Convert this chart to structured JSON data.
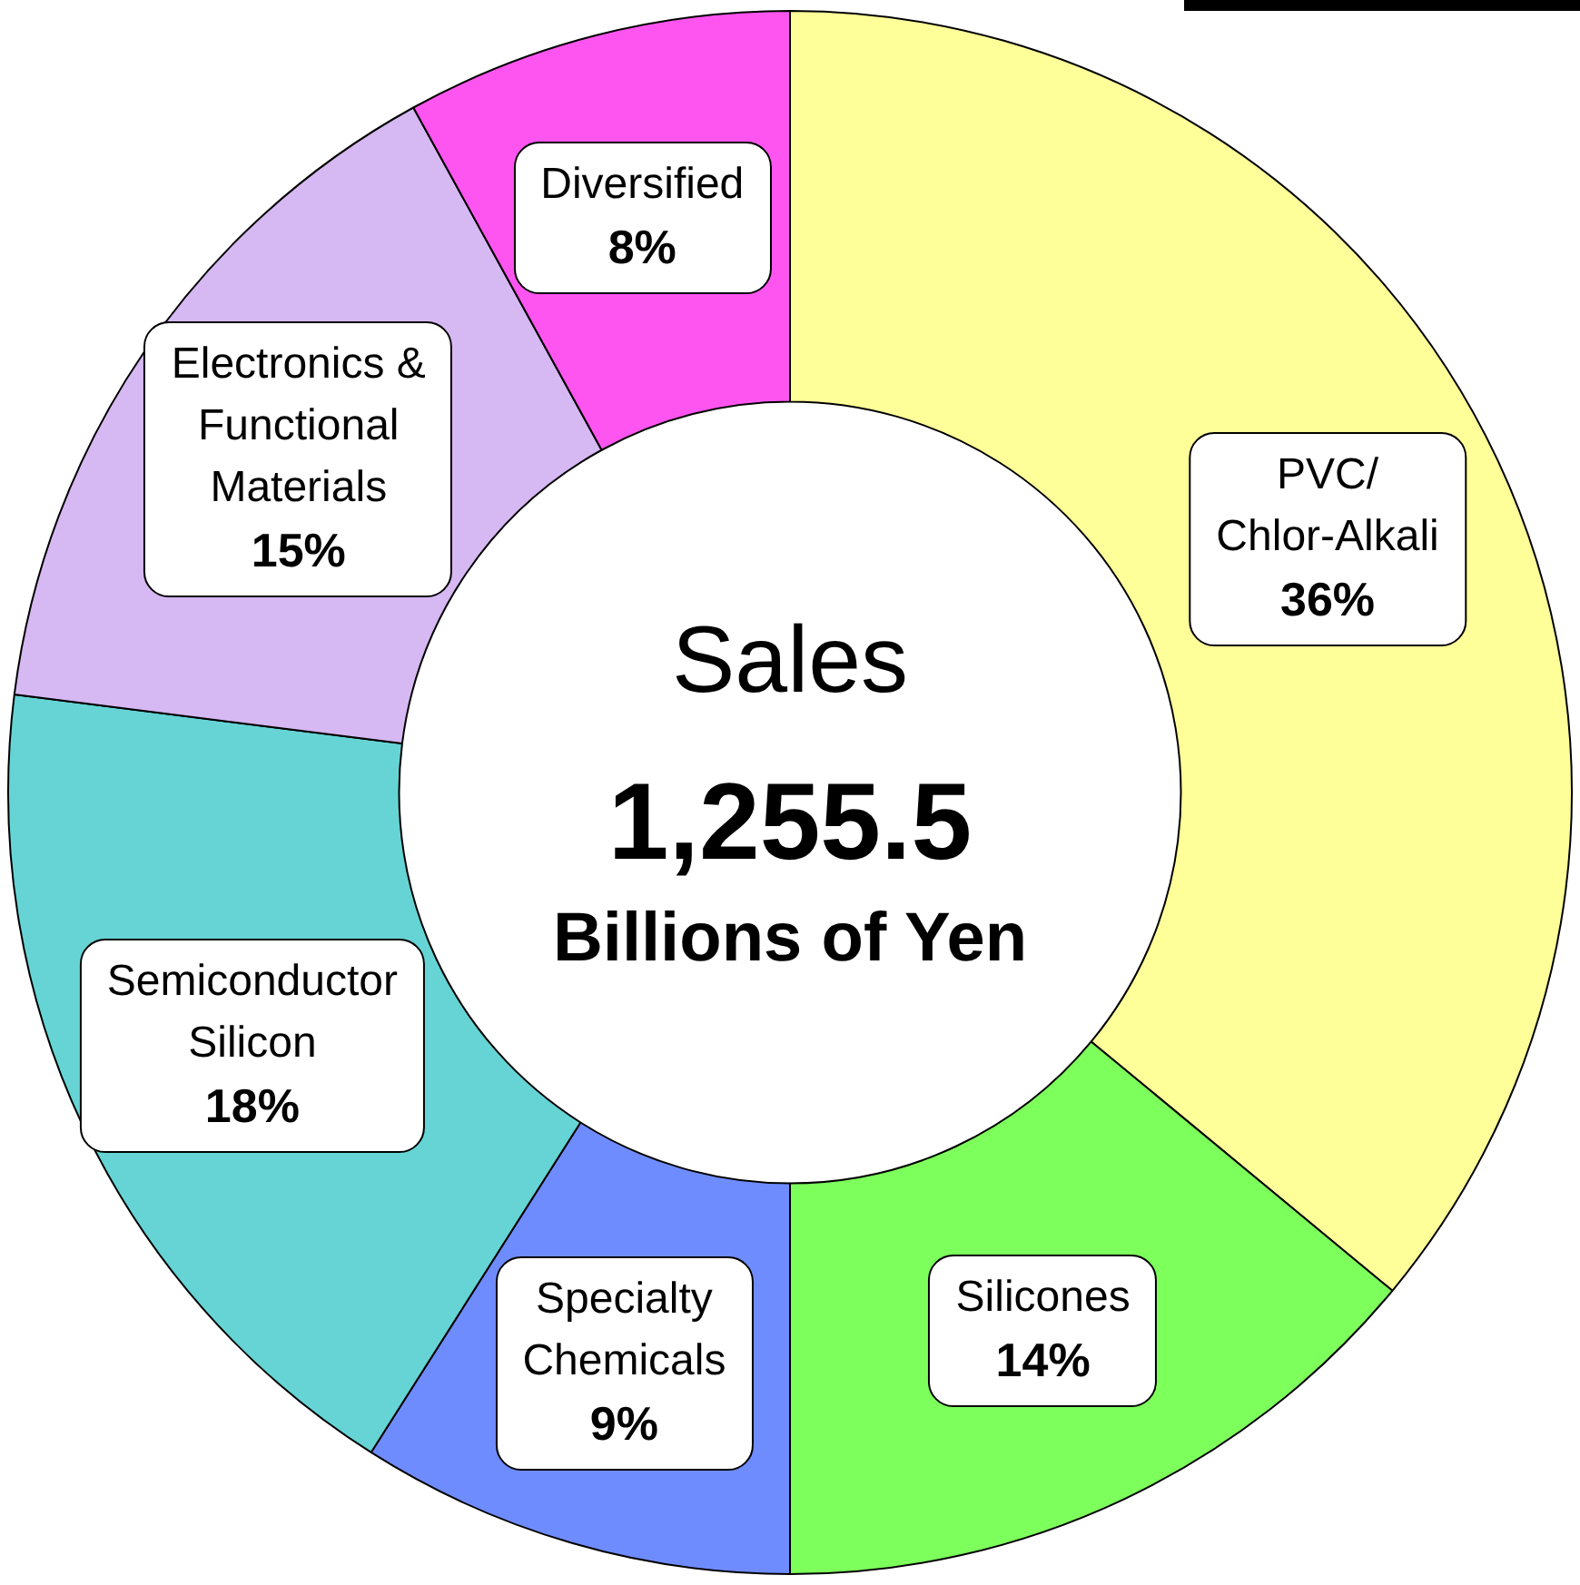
{
  "chart_data": {
    "type": "donut",
    "title": "Sales",
    "annotations": [
      "1,255.5",
      "Billions of Yen"
    ],
    "categories": [
      "PVC/ Chlor-Alkali",
      "Silicones",
      "Specialty Chemicals",
      "Semiconductor Silicon",
      "Electronics & Functional Materials",
      "Diversified"
    ],
    "values": [
      36,
      14,
      9,
      18,
      15,
      8
    ],
    "value_labels": [
      "36%",
      "14%",
      "9%",
      "18%",
      "15%",
      "8%"
    ],
    "colors": [
      "#ffff99",
      "#7dff5c",
      "#6f8cff",
      "#66d4d4",
      "#d6b8f2",
      "#ff55f0"
    ],
    "legend": false
  }
}
